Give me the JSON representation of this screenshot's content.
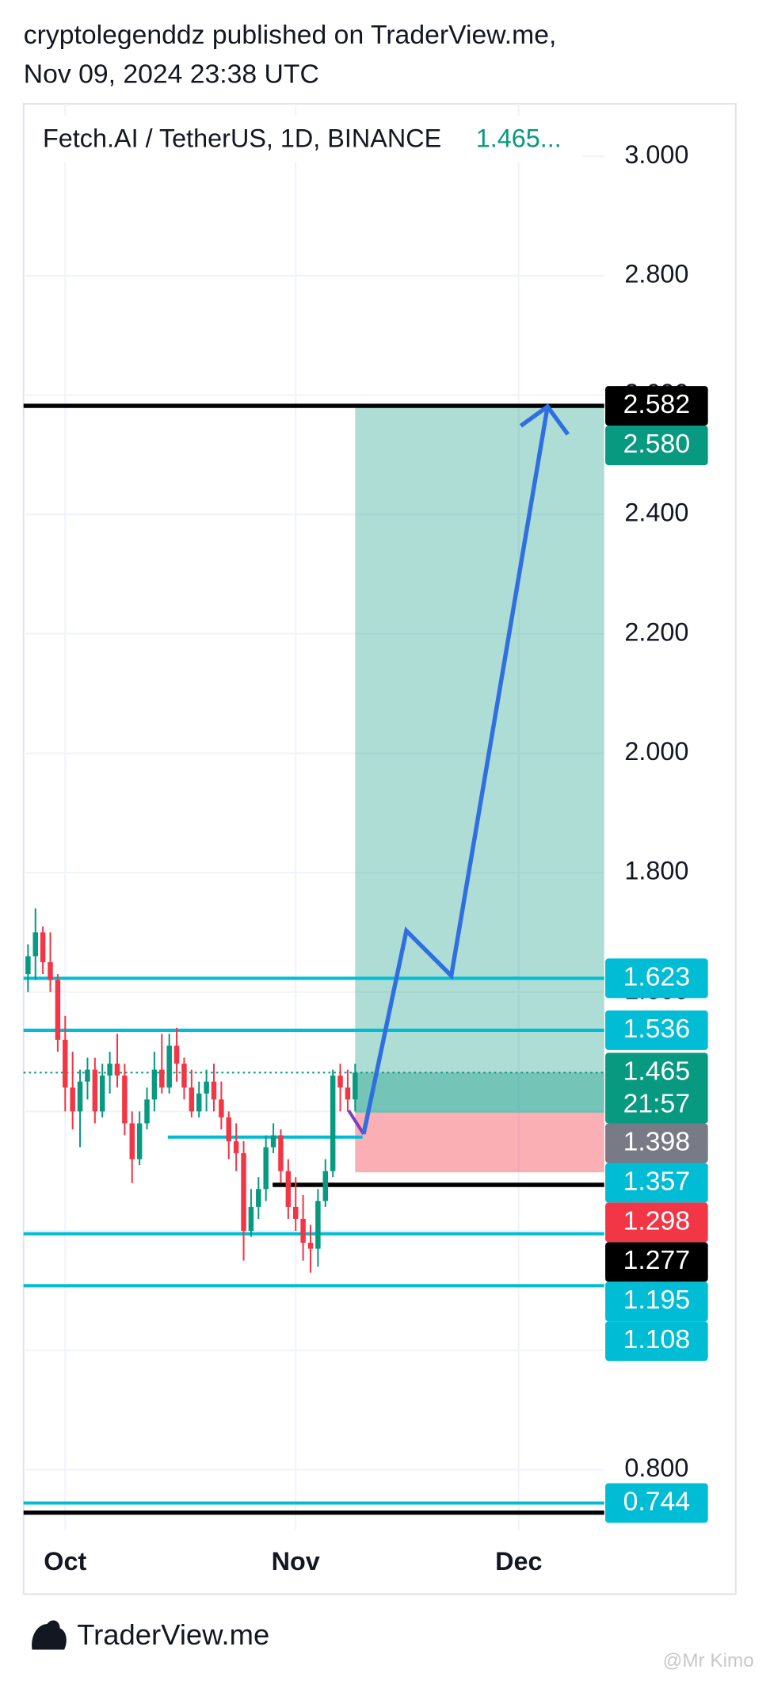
{
  "header": {
    "line1": "cryptolegenddz published on TraderView.me,",
    "line2": "Nov 09, 2024 23:38 UTC"
  },
  "footer": {
    "brand": "TraderView.me",
    "watermark": "@Mr Kimo"
  },
  "chart_data": {
    "type": "candlestick",
    "title": "Fetch.AI / TetherUS, 1D, BINANCE",
    "legend_value": "1.465...",
    "xlim": [
      -5.6,
      72.5
    ],
    "xticks": [
      {
        "value": 0,
        "label": "Oct"
      },
      {
        "value": 31,
        "label": "Nov"
      },
      {
        "value": 61,
        "label": "Dec"
      }
    ],
    "ylim": [
      0.699,
      3.088
    ],
    "yticks": [
      {
        "value": 0.8,
        "label": "0.800"
      },
      {
        "value": 1,
        "label": "1.000"
      },
      {
        "value": 1.2,
        "label": "1.200"
      },
      {
        "value": 1.4,
        "label": "1.400"
      },
      {
        "value": 1.6,
        "label": "1.600"
      },
      {
        "value": 1.8,
        "label": "1.800"
      },
      {
        "value": 2,
        "label": "2.000"
      },
      {
        "value": 2.2,
        "label": "2.200"
      },
      {
        "value": 2.4,
        "label": "2.400"
      },
      {
        "value": 2.6,
        "label": "2.600"
      },
      {
        "value": 2.8,
        "label": "2.800"
      },
      {
        "value": 3,
        "label": "3.000"
      }
    ],
    "grid": true,
    "up_color": "#089981",
    "down_color": "#f23645",
    "x": [
      -5,
      -4,
      -3,
      -2,
      -1,
      0,
      1,
      2,
      3,
      4,
      5,
      6,
      7,
      8,
      9,
      10,
      11,
      12,
      13,
      14,
      15,
      16,
      17,
      18,
      19,
      20,
      21,
      22,
      23,
      24,
      25,
      26,
      27,
      28,
      29,
      30,
      31,
      32,
      33,
      34,
      35,
      36,
      37,
      38,
      39
    ],
    "open": [
      1.63,
      1.66,
      1.7,
      1.65,
      1.62,
      1.52,
      1.44,
      1.4,
      1.45,
      1.47,
      1.4,
      1.46,
      1.48,
      1.46,
      1.38,
      1.32,
      1.38,
      1.42,
      1.47,
      1.44,
      1.51,
      1.48,
      1.44,
      1.4,
      1.43,
      1.45,
      1.42,
      1.39,
      1.35,
      1.33,
      1.2,
      1.24,
      1.27,
      1.34,
      1.36,
      1.3,
      1.24,
      1.22,
      1.18,
      1.17,
      1.25,
      1.3,
      1.46,
      1.44,
      1.42
    ],
    "high": [
      1.68,
      1.74,
      1.71,
      1.7,
      1.63,
      1.56,
      1.5,
      1.47,
      1.49,
      1.49,
      1.48,
      1.5,
      1.53,
      1.48,
      1.4,
      1.4,
      1.44,
      1.5,
      1.53,
      1.53,
      1.54,
      1.49,
      1.47,
      1.45,
      1.47,
      1.48,
      1.45,
      1.4,
      1.38,
      1.35,
      1.27,
      1.29,
      1.36,
      1.38,
      1.37,
      1.32,
      1.29,
      1.26,
      1.21,
      1.27,
      1.32,
      1.47,
      1.48,
      1.47,
      1.48
    ],
    "low": [
      1.6,
      1.62,
      1.63,
      1.6,
      1.5,
      1.4,
      1.37,
      1.34,
      1.42,
      1.38,
      1.39,
      1.43,
      1.44,
      1.36,
      1.28,
      1.31,
      1.37,
      1.4,
      1.43,
      1.43,
      1.45,
      1.42,
      1.39,
      1.39,
      1.4,
      1.4,
      1.37,
      1.32,
      1.3,
      1.15,
      1.19,
      1.22,
      1.25,
      1.33,
      1.28,
      1.22,
      1.2,
      1.15,
      1.13,
      1.14,
      1.24,
      1.29,
      1.4,
      1.4,
      1.4
    ],
    "close": [
      1.66,
      1.7,
      1.65,
      1.62,
      1.52,
      1.44,
      1.4,
      1.45,
      1.47,
      1.4,
      1.46,
      1.48,
      1.46,
      1.38,
      1.32,
      1.38,
      1.42,
      1.47,
      1.44,
      1.51,
      1.48,
      1.44,
      1.4,
      1.43,
      1.45,
      1.42,
      1.39,
      1.35,
      1.33,
      1.2,
      1.24,
      1.27,
      1.34,
      1.36,
      1.3,
      1.24,
      1.22,
      1.18,
      1.17,
      1.25,
      1.3,
      1.46,
      1.44,
      1.42,
      1.465
    ],
    "current_price": {
      "value": 1.465,
      "label": "1.465",
      "countdown": "21:57",
      "color": "#089981"
    },
    "position": {
      "x_start": 39,
      "target": {
        "value": 2.58,
        "label": "2.580",
        "color": "#089981"
      },
      "entry": {
        "value": 1.398,
        "label": "1.398",
        "color": "#787b86"
      },
      "stop": {
        "value": 1.298,
        "label": "1.298",
        "color": "#f23645"
      }
    },
    "horizontal_lines": [
      {
        "value": 2.582,
        "label": "2.582",
        "color": "#000000"
      },
      {
        "value": 1.623,
        "label": "1.623",
        "color": "#00bcd4"
      },
      {
        "value": 1.536,
        "label": "1.536",
        "color": "#00bcd4"
      },
      {
        "value": 1.357,
        "label": "1.357",
        "color": "#00bcd4",
        "x_start": 13.8,
        "x_end": 40
      },
      {
        "value": 1.277,
        "label": "1.277",
        "color": "#000000",
        "x_start": 27.9
      },
      {
        "value": 1.195,
        "label": "1.195",
        "color": "#00bcd4"
      },
      {
        "value": 1.108,
        "label": "1.108",
        "color": "#00bcd4"
      },
      {
        "value": 0.744,
        "label": "0.744",
        "color": "#00bcd4"
      },
      {
        "value": 0.728,
        "color": "#000000"
      }
    ]
  }
}
